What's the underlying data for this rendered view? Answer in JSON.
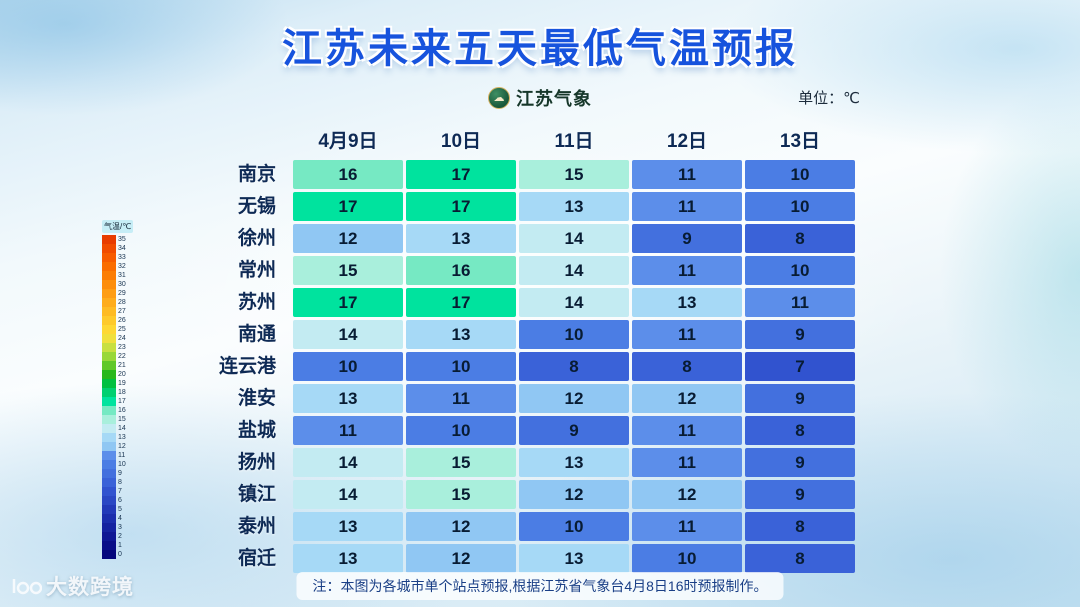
{
  "title": "江苏未来五天最低气温预报",
  "header": {
    "logo_text": "江苏气象",
    "logo_icon": "jiangsu-meteorology-badge",
    "unit_label": "单位：℃"
  },
  "legend": {
    "title": "气温/℃",
    "values": [
      35,
      34,
      33,
      32,
      31,
      30,
      29,
      28,
      27,
      26,
      25,
      24,
      23,
      22,
      21,
      20,
      19,
      18,
      17,
      16,
      15,
      14,
      13,
      12,
      11,
      10,
      9,
      8,
      7,
      6,
      5,
      4,
      3,
      2,
      1,
      0
    ],
    "colors": [
      "#E83C00",
      "#F14C00",
      "#F75C00",
      "#FA6D00",
      "#FC7D04",
      "#FD8E0C",
      "#FE9D14",
      "#FEAC1C",
      "#FEBB24",
      "#FECA2C",
      "#FED834",
      "#F0E03C",
      "#C8E040",
      "#98D838",
      "#60C828",
      "#28B81C",
      "#00C040",
      "#00D070",
      "#00E39E",
      "#76E9C3",
      "#A9EFDC",
      "#C3EBF2",
      "#A6D9F6",
      "#90C7F3",
      "#5C8EEA",
      "#4B7DE4",
      "#4370DE",
      "#3A62D8",
      "#3153CF",
      "#2A47C4",
      "#2239B8",
      "#1B2DAC",
      "#1522A0",
      "#0F1794",
      "#0A0E88",
      "#05067C"
    ]
  },
  "chart_data": {
    "type": "heatmap",
    "title": "江苏未来五天最低气温预报",
    "unit": "℃",
    "value_range": [
      0,
      35
    ],
    "columns": [
      "4月9日",
      "10日",
      "11日",
      "12日",
      "13日"
    ],
    "rows": [
      {
        "city": "南京",
        "values": [
          16,
          17,
          15,
          11,
          10
        ]
      },
      {
        "city": "无锡",
        "values": [
          17,
          17,
          13,
          11,
          10
        ]
      },
      {
        "city": "徐州",
        "values": [
          12,
          13,
          14,
          9,
          8
        ]
      },
      {
        "city": "常州",
        "values": [
          15,
          16,
          14,
          11,
          10
        ]
      },
      {
        "city": "苏州",
        "values": [
          17,
          17,
          14,
          13,
          11
        ]
      },
      {
        "city": "南通",
        "values": [
          14,
          13,
          10,
          11,
          9
        ]
      },
      {
        "city": "连云港",
        "values": [
          10,
          10,
          8,
          8,
          7
        ]
      },
      {
        "city": "淮安",
        "values": [
          13,
          11,
          12,
          12,
          9
        ]
      },
      {
        "city": "盐城",
        "values": [
          11,
          10,
          9,
          11,
          8
        ]
      },
      {
        "city": "扬州",
        "values": [
          14,
          15,
          13,
          11,
          9
        ]
      },
      {
        "city": "镇江",
        "values": [
          14,
          15,
          12,
          12,
          9
        ]
      },
      {
        "city": "泰州",
        "values": [
          13,
          12,
          10,
          11,
          8
        ]
      },
      {
        "city": "宿迁",
        "values": [
          13,
          12,
          13,
          10,
          8
        ]
      }
    ],
    "temp_colors": {
      "7": "#3153CF",
      "8": "#3A62D8",
      "9": "#4370DE",
      "10": "#4B7DE4",
      "11": "#5C8EEA",
      "12": "#90C7F3",
      "13": "#A6D9F6",
      "14": "#C3EBF2",
      "15": "#A9EFDC",
      "16": "#76E9C3",
      "17": "#00E39E"
    }
  },
  "note": "注：本图为各城市单个站点预报,根据江苏省气象台4月8日16时预报制作。",
  "watermark": {
    "icon": "100-logo",
    "text": "大数跨境"
  },
  "accent_colors": {
    "title_blue": "#1753dd",
    "note_blue": "#1a3f86"
  }
}
